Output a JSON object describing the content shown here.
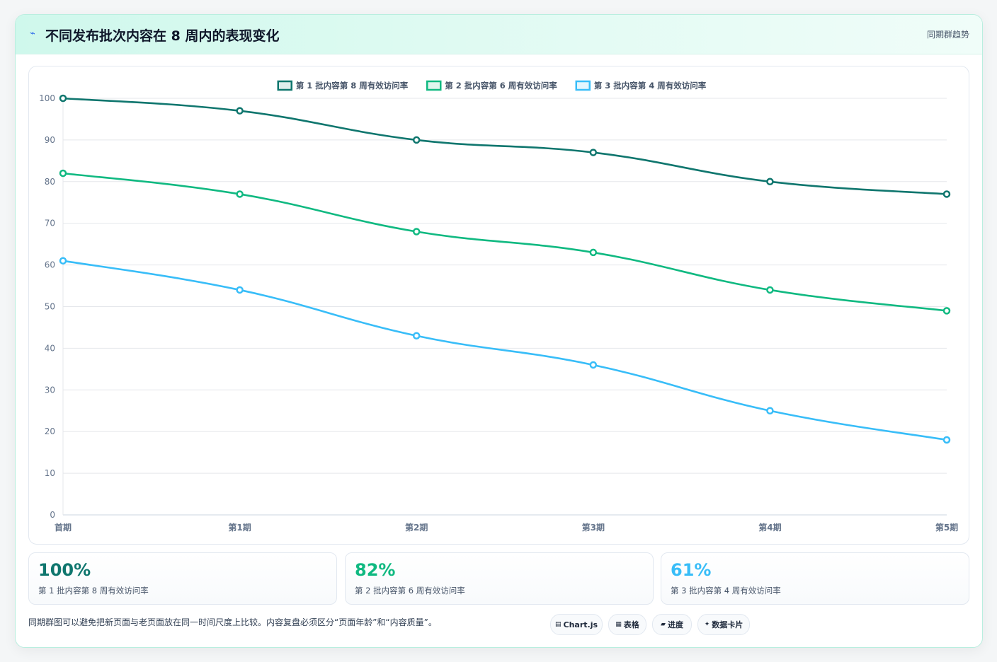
{
  "header": {
    "icon": "trend-icon",
    "title": "不同发布批次内容在 8 周内的表现变化",
    "tag": "同期群趋势"
  },
  "chart_data": {
    "type": "line",
    "categories": [
      "首期",
      "第1期",
      "第2期",
      "第3期",
      "第4期",
      "第5期"
    ],
    "series": [
      {
        "name": "第 1 批内容第 8 周有效访问率",
        "values": [
          100,
          97,
          90,
          87,
          80,
          77
        ],
        "color": "#0f766e"
      },
      {
        "name": "第 2 批内容第 6 周有效访问率",
        "values": [
          82,
          77,
          68,
          63,
          54,
          49
        ],
        "color": "#10b981"
      },
      {
        "name": "第 3 批内容第 4 周有效访问率",
        "values": [
          61,
          54,
          43,
          36,
          25,
          18
        ],
        "color": "#38bdf8"
      }
    ],
    "ylim": [
      0,
      100
    ],
    "yticks": [
      0,
      10,
      20,
      30,
      40,
      50,
      60,
      70,
      80,
      90,
      100
    ],
    "grid": true,
    "legend": "top-center"
  },
  "stats": [
    {
      "value": "100%",
      "label": "第 1 批内容第 8 周有效访问率",
      "color": "#0f766e"
    },
    {
      "value": "82%",
      "label": "第 2 批内容第 6 周有效访问率",
      "color": "#10b981"
    },
    {
      "value": "61%",
      "label": "第 3 批内容第 4 周有效访问率",
      "color": "#38bdf8"
    }
  ],
  "footer": {
    "note": "同期群图可以避免把新页面与老页面放在同一时间尺度上比较。内容复盘必须区分“页面年龄”和“内容质量”。",
    "pills": [
      {
        "icon": "▤",
        "label": "Chart.js"
      },
      {
        "icon": "▦",
        "label": "表格"
      },
      {
        "icon": "▰",
        "label": "进度"
      },
      {
        "icon": "✦",
        "label": "数据卡片"
      }
    ]
  }
}
